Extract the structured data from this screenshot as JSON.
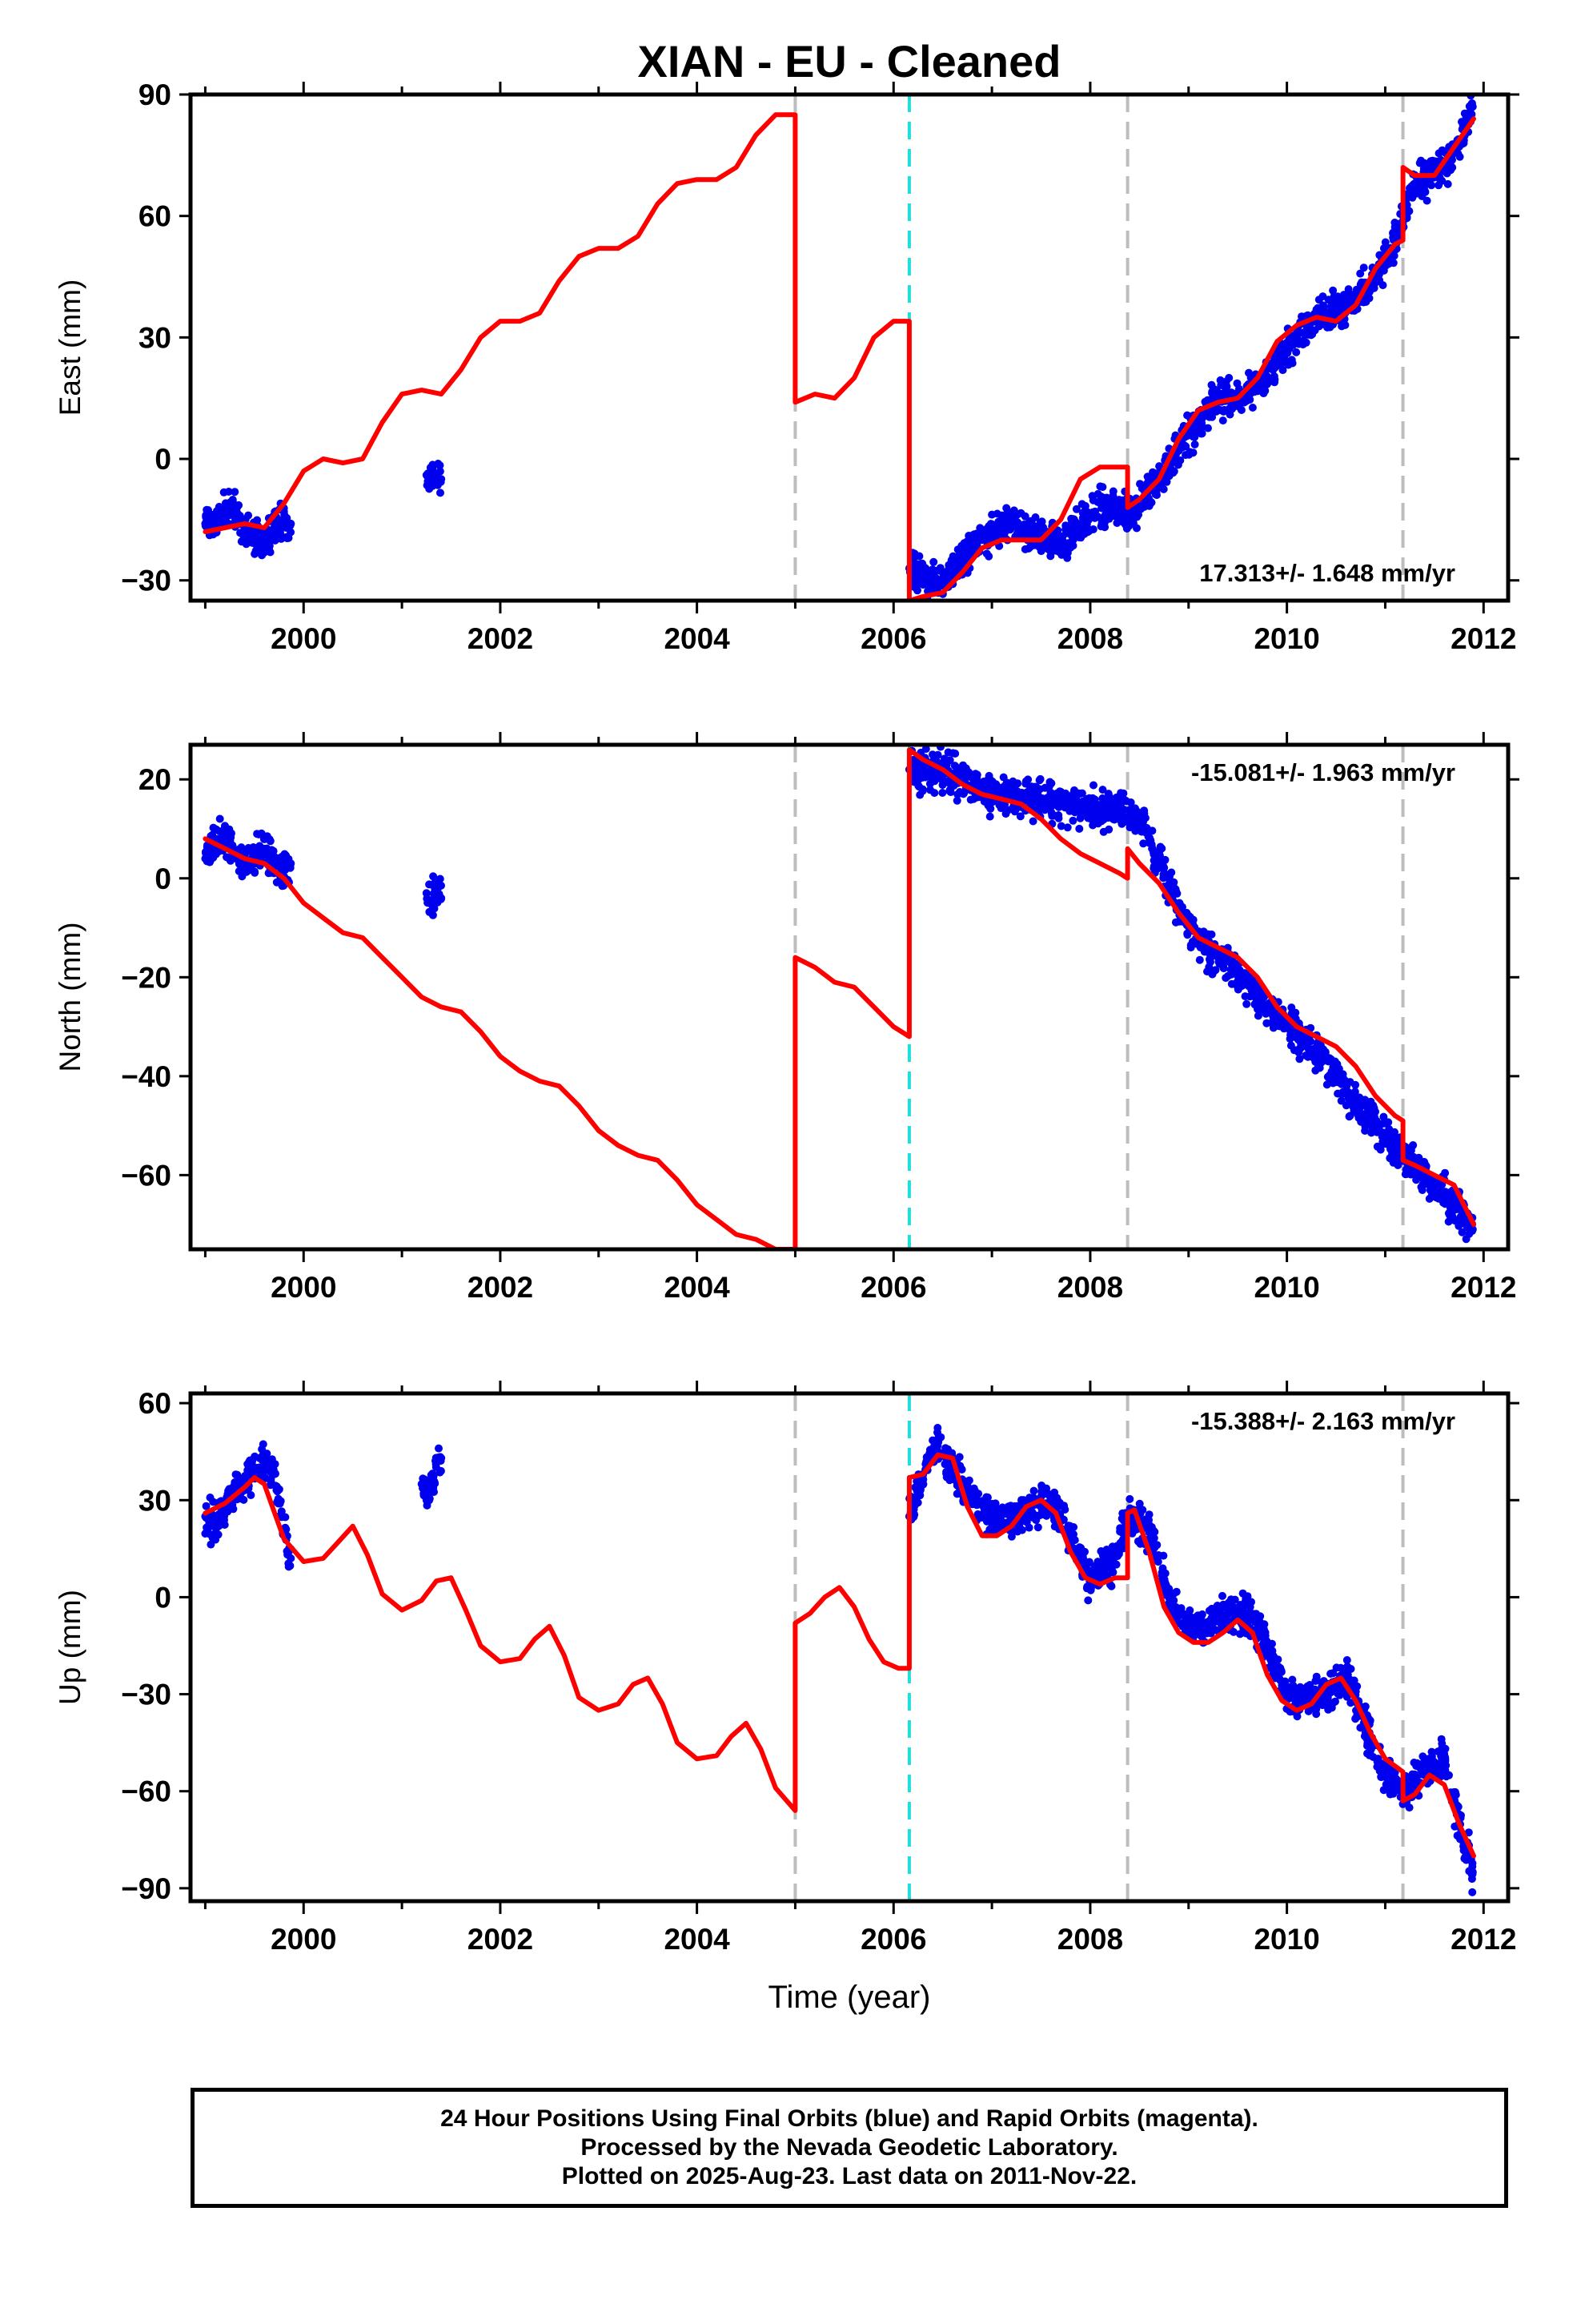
{
  "title": "XIAN  - EU - Cleaned",
  "chart_data": [
    {
      "type": "scatter",
      "ylabel": "East (mm)",
      "xlim": [
        1998.85,
        2012.25
      ],
      "ylim": [
        -35,
        90
      ],
      "yticks": [
        -30,
        0,
        30,
        60,
        90
      ],
      "xticks": [
        2000,
        2002,
        2004,
        2006,
        2008,
        2010,
        2012
      ],
      "rate_label": "17.313+/- 1.648 mm/yr",
      "breaks": {
        "gray": [
          2005.0,
          2008.38,
          2011.18
        ],
        "cyan": [
          2006.16
        ]
      },
      "series": [
        {
          "kind": "points",
          "color": "#0000ee",
          "x": [
            1999.0,
            1999.1,
            1999.2,
            1999.3,
            1999.4,
            1999.5,
            1999.6,
            1999.7,
            1999.8,
            1999.87,
            2001.25,
            2001.4,
            2006.16,
            2006.3,
            2006.5,
            2006.7,
            2006.9,
            2007.1,
            2007.3,
            2007.5,
            2007.7,
            2007.9,
            2008.05,
            2008.2,
            2008.38,
            2008.5,
            2008.7,
            2008.9,
            2009.1,
            2009.3,
            2009.5,
            2009.7,
            2009.9,
            2010.1,
            2010.3,
            2010.5,
            2010.7,
            2010.9,
            2011.1,
            2011.18,
            2011.3,
            2011.45,
            2011.6,
            2011.75,
            2011.89
          ],
          "y": [
            -16,
            -15,
            -13,
            -12,
            -18,
            -19,
            -21,
            -17,
            -16,
            -16,
            -4,
            -5,
            -27,
            -28,
            -30,
            -24,
            -20,
            -16,
            -17,
            -19,
            -21,
            -16,
            -13,
            -11,
            -14,
            -11,
            -6,
            2,
            9,
            15,
            15,
            18,
            24,
            30,
            35,
            37,
            40,
            44,
            55,
            60,
            68,
            70,
            72,
            78,
            87
          ]
        },
        {
          "kind": "line",
          "color": "#ff0000",
          "name": "model",
          "x": [
            1999.0,
            1999.2,
            1999.4,
            1999.6,
            1999.8,
            2000.0,
            2000.2,
            2000.4,
            2000.6,
            2000.8,
            2001.0,
            2001.2,
            2001.4,
            2001.6,
            2001.8,
            2002.0,
            2002.2,
            2002.4,
            2002.6,
            2002.8,
            2003.0,
            2003.2,
            2003.4,
            2003.6,
            2003.8,
            2004.0,
            2004.2,
            2004.4,
            2004.6,
            2004.8,
            2005.0,
            2005.0,
            2005.2,
            2005.4,
            2005.6,
            2005.8,
            2006.0,
            2006.16,
            2006.16,
            2006.3,
            2006.5,
            2006.7,
            2006.9,
            2007.1,
            2007.3,
            2007.5,
            2007.7,
            2007.9,
            2008.1,
            2008.3,
            2008.38,
            2008.38,
            2008.5,
            2008.7,
            2008.9,
            2009.1,
            2009.3,
            2009.5,
            2009.7,
            2009.9,
            2010.1,
            2010.3,
            2010.5,
            2010.7,
            2010.9,
            2011.1,
            2011.18,
            2011.18,
            2011.3,
            2011.5,
            2011.7,
            2011.9
          ],
          "y": [
            -18,
            -17,
            -16,
            -17,
            -11,
            -3,
            0,
            -1,
            0,
            9,
            16,
            17,
            16,
            22,
            30,
            34,
            34,
            36,
            44,
            50,
            52,
            52,
            55,
            63,
            68,
            69,
            69,
            72,
            80,
            85,
            85,
            14,
            16,
            15,
            20,
            30,
            34,
            34,
            -35,
            -34,
            -33,
            -28,
            -22,
            -20,
            -20,
            -20,
            -15,
            -5,
            -2,
            -2,
            -2,
            -12,
            -10,
            -5,
            5,
            12,
            14,
            15,
            20,
            29,
            33,
            35,
            34,
            38,
            47,
            53,
            54,
            72,
            70,
            70,
            77,
            84
          ]
        }
      ]
    },
    {
      "type": "scatter",
      "ylabel": "North (mm)",
      "xlim": [
        1998.85,
        2012.25
      ],
      "ylim": [
        -75,
        27
      ],
      "yticks": [
        -60,
        -40,
        -20,
        0,
        20
      ],
      "xticks": [
        2000,
        2002,
        2004,
        2006,
        2008,
        2010,
        2012
      ],
      "rate_label": "-15.081+/- 1.963 mm/yr",
      "breaks": {
        "gray": [
          2005.0,
          2008.38,
          2011.18
        ],
        "cyan": [
          2006.16
        ]
      },
      "series": [
        {
          "kind": "points",
          "color": "#0000ee",
          "x": [
            1999.0,
            1999.1,
            1999.2,
            1999.3,
            1999.4,
            1999.5,
            1999.6,
            1999.7,
            1999.8,
            1999.87,
            2001.25,
            2001.4,
            2006.16,
            2006.3,
            2006.5,
            2006.7,
            2006.9,
            2007.1,
            2007.3,
            2007.5,
            2007.7,
            2007.9,
            2008.1,
            2008.3,
            2008.5,
            2008.7,
            2008.9,
            2009.1,
            2009.3,
            2009.5,
            2009.7,
            2009.9,
            2010.1,
            2010.3,
            2010.5,
            2010.7,
            2010.9,
            2011.1,
            2011.3,
            2011.5,
            2011.7,
            2011.89
          ],
          "y": [
            4,
            7,
            8,
            5,
            3,
            4,
            6,
            3,
            2,
            3,
            -3,
            -4,
            22,
            21,
            22,
            20,
            18,
            17,
            16,
            16,
            15,
            15,
            14,
            14,
            13,
            3,
            -6,
            -12,
            -16,
            -19,
            -24,
            -28,
            -31,
            -35,
            -40,
            -46,
            -50,
            -55,
            -58,
            -62,
            -66,
            -71
          ]
        },
        {
          "kind": "line",
          "color": "#ff0000",
          "name": "model",
          "x": [
            1999.0,
            1999.2,
            1999.4,
            1999.6,
            1999.8,
            2000.0,
            2000.2,
            2000.4,
            2000.6,
            2000.8,
            2001.0,
            2001.2,
            2001.4,
            2001.6,
            2001.8,
            2002.0,
            2002.2,
            2002.4,
            2002.6,
            2002.8,
            2003.0,
            2003.2,
            2003.4,
            2003.6,
            2003.8,
            2004.0,
            2004.2,
            2004.4,
            2004.6,
            2004.8,
            2005.0,
            2005.0,
            2005.2,
            2005.4,
            2005.6,
            2005.8,
            2006.0,
            2006.16,
            2006.16,
            2006.3,
            2006.5,
            2006.7,
            2006.9,
            2007.1,
            2007.3,
            2007.5,
            2007.7,
            2007.9,
            2008.1,
            2008.3,
            2008.38,
            2008.38,
            2008.5,
            2008.7,
            2008.9,
            2009.1,
            2009.3,
            2009.5,
            2009.7,
            2009.9,
            2010.1,
            2010.3,
            2010.5,
            2010.7,
            2010.9,
            2011.1,
            2011.18,
            2011.18,
            2011.3,
            2011.5,
            2011.7,
            2011.9
          ],
          "y": [
            8,
            6,
            4,
            3,
            0,
            -5,
            -8,
            -11,
            -12,
            -16,
            -20,
            -24,
            -26,
            -27,
            -31,
            -36,
            -39,
            -41,
            -42,
            -46,
            -51,
            -54,
            -56,
            -57,
            -61,
            -66,
            -69,
            -72,
            -73,
            -75,
            -75,
            -16,
            -18,
            -21,
            -22,
            -26,
            -30,
            -32,
            26,
            24,
            22,
            19,
            17,
            16,
            15,
            12,
            8,
            5,
            3,
            1,
            0,
            6,
            3,
            -1,
            -7,
            -12,
            -14,
            -16,
            -20,
            -26,
            -30,
            -32,
            -34,
            -38,
            -44,
            -48,
            -49,
            -57,
            -58,
            -60,
            -62,
            -70
          ]
        }
      ]
    },
    {
      "type": "scatter",
      "ylabel": "Up (mm)",
      "xlabel": "Time (year)",
      "xlim": [
        1998.85,
        2012.25
      ],
      "ylim": [
        -94,
        63
      ],
      "yticks": [
        -90,
        -60,
        -30,
        0,
        30,
        60
      ],
      "xticks": [
        2000,
        2002,
        2004,
        2006,
        2008,
        2010,
        2012
      ],
      "rate_label": "-15.388+/- 2.163 mm/yr",
      "breaks": {
        "gray": [
          2005.0,
          2008.38,
          2011.18
        ],
        "cyan": [
          2006.16
        ]
      },
      "series": [
        {
          "kind": "points",
          "color": "#0000ee",
          "x": [
            1999.0,
            1999.1,
            1999.2,
            1999.3,
            1999.4,
            1999.5,
            1999.6,
            1999.7,
            1999.8,
            1999.87,
            2001.2,
            2001.25,
            2001.4,
            2006.16,
            2006.3,
            2006.45,
            2006.6,
            2006.8,
            2007.0,
            2007.2,
            2007.4,
            2007.6,
            2007.8,
            2008.0,
            2008.2,
            2008.4,
            2008.6,
            2008.8,
            2009.0,
            2009.2,
            2009.4,
            2009.6,
            2009.8,
            2010.0,
            2010.2,
            2010.4,
            2010.6,
            2010.8,
            2011.0,
            2011.2,
            2011.4,
            2011.6,
            2011.75,
            2011.89
          ],
          "y": [
            25,
            22,
            28,
            33,
            35,
            40,
            42,
            38,
            20,
            12,
            35,
            30,
            43,
            25,
            38,
            48,
            40,
            30,
            25,
            24,
            28,
            30,
            18,
            5,
            10,
            25,
            20,
            0,
            -10,
            -8,
            -5,
            -5,
            -15,
            -30,
            -32,
            -30,
            -25,
            -40,
            -55,
            -60,
            -55,
            -50,
            -70,
            -85
          ]
        },
        {
          "kind": "line",
          "color": "#ff0000",
          "name": "model",
          "x": [
            1999.0,
            1999.2,
            1999.4,
            1999.5,
            1999.6,
            1999.8,
            2000.0,
            2000.2,
            2000.35,
            2000.5,
            2000.65,
            2000.8,
            2001.0,
            2001.2,
            2001.35,
            2001.5,
            2001.65,
            2001.8,
            2002.0,
            2002.2,
            2002.35,
            2002.5,
            2002.65,
            2002.8,
            2003.0,
            2003.2,
            2003.35,
            2003.5,
            2003.65,
            2003.8,
            2004.0,
            2004.2,
            2004.35,
            2004.5,
            2004.65,
            2004.8,
            2005.0,
            2005.0,
            2005.15,
            2005.3,
            2005.45,
            2005.6,
            2005.75,
            2005.9,
            2006.05,
            2006.16,
            2006.16,
            2006.3,
            2006.45,
            2006.6,
            2006.75,
            2006.9,
            2007.05,
            2007.2,
            2007.35,
            2007.5,
            2007.65,
            2007.8,
            2007.95,
            2008.1,
            2008.25,
            2008.38,
            2008.38,
            2008.45,
            2008.6,
            2008.75,
            2008.9,
            2009.05,
            2009.2,
            2009.35,
            2009.5,
            2009.65,
            2009.8,
            2009.95,
            2010.1,
            2010.25,
            2010.4,
            2010.55,
            2010.7,
            2010.85,
            2011.0,
            2011.18,
            2011.18,
            2011.3,
            2011.45,
            2011.6,
            2011.75,
            2011.9
          ],
          "y": [
            26,
            29,
            34,
            37,
            35,
            18,
            11,
            12,
            17,
            22,
            13,
            1,
            -4,
            -1,
            5,
            6,
            -4,
            -15,
            -20,
            -19,
            -13,
            -9,
            -18,
            -31,
            -35,
            -33,
            -27,
            -25,
            -33,
            -45,
            -50,
            -49,
            -43,
            -39,
            -47,
            -59,
            -66,
            -8,
            -5,
            0,
            3,
            -3,
            -13,
            -20,
            -22,
            -22,
            37,
            38,
            44,
            43,
            28,
            19,
            19,
            22,
            28,
            30,
            26,
            14,
            6,
            4,
            6,
            6,
            26,
            27,
            14,
            -3,
            -11,
            -14,
            -14,
            -11,
            -7,
            -11,
            -24,
            -32,
            -35,
            -33,
            -27,
            -25,
            -32,
            -42,
            -50,
            -54,
            -63,
            -61,
            -55,
            -58,
            -70,
            -80
          ]
        }
      ]
    }
  ],
  "footer": {
    "line1": "24 Hour Positions Using Final Orbits (blue) and Rapid Orbits (magenta).",
    "line2": "Processed by the Nevada Geodetic Laboratory.",
    "line3": "Plotted on 2025-Aug-23. Last data on 2011-Nov-22."
  }
}
